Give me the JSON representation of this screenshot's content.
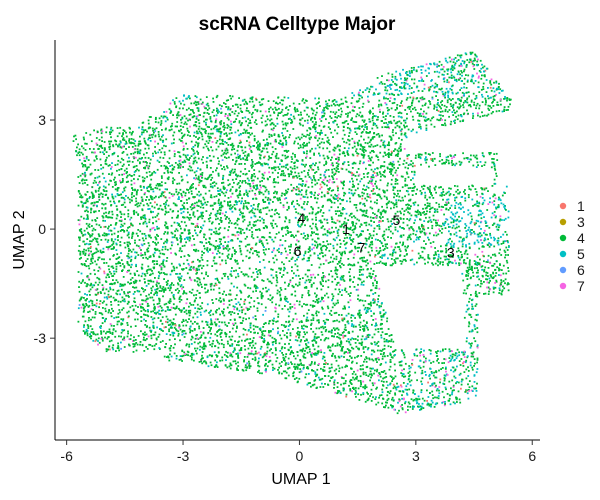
{
  "chart_data": {
    "type": "scatter",
    "title": "scRNA Celltype Major",
    "xlabel": "UMAP 1",
    "ylabel": "UMAP 2",
    "xlim": [
      -6.3,
      6.2
    ],
    "ylim": [
      -5.8,
      5.2
    ],
    "x_ticks": [
      -6,
      -3,
      0,
      3,
      6
    ],
    "y_ticks": [
      -3,
      0,
      3
    ],
    "x_tick_labels": [
      "-6",
      "-3",
      "0",
      "3",
      "6"
    ],
    "y_tick_labels": [
      "-3",
      "0",
      "3"
    ],
    "grid": false,
    "legend_position": "right",
    "series": [
      {
        "name": "1",
        "color": "#F8766D"
      },
      {
        "name": "3",
        "color": "#B79F00"
      },
      {
        "name": "4",
        "color": "#00BA38"
      },
      {
        "name": "5",
        "color": "#00BFC4"
      },
      {
        "name": "6",
        "color": "#619CFF"
      },
      {
        "name": "7",
        "color": "#F564E3"
      }
    ],
    "cluster_labels": [
      {
        "text": "4",
        "x": 0.05,
        "y": 0.3
      },
      {
        "text": "5",
        "x": 2.5,
        "y": 0.25
      },
      {
        "text": "1",
        "x": 1.2,
        "y": 0.0
      },
      {
        "text": "6",
        "x": -0.05,
        "y": -0.6
      },
      {
        "text": "7",
        "x": 1.6,
        "y": -0.5
      },
      {
        "text": "3",
        "x": 3.9,
        "y": -0.65
      }
    ]
  }
}
